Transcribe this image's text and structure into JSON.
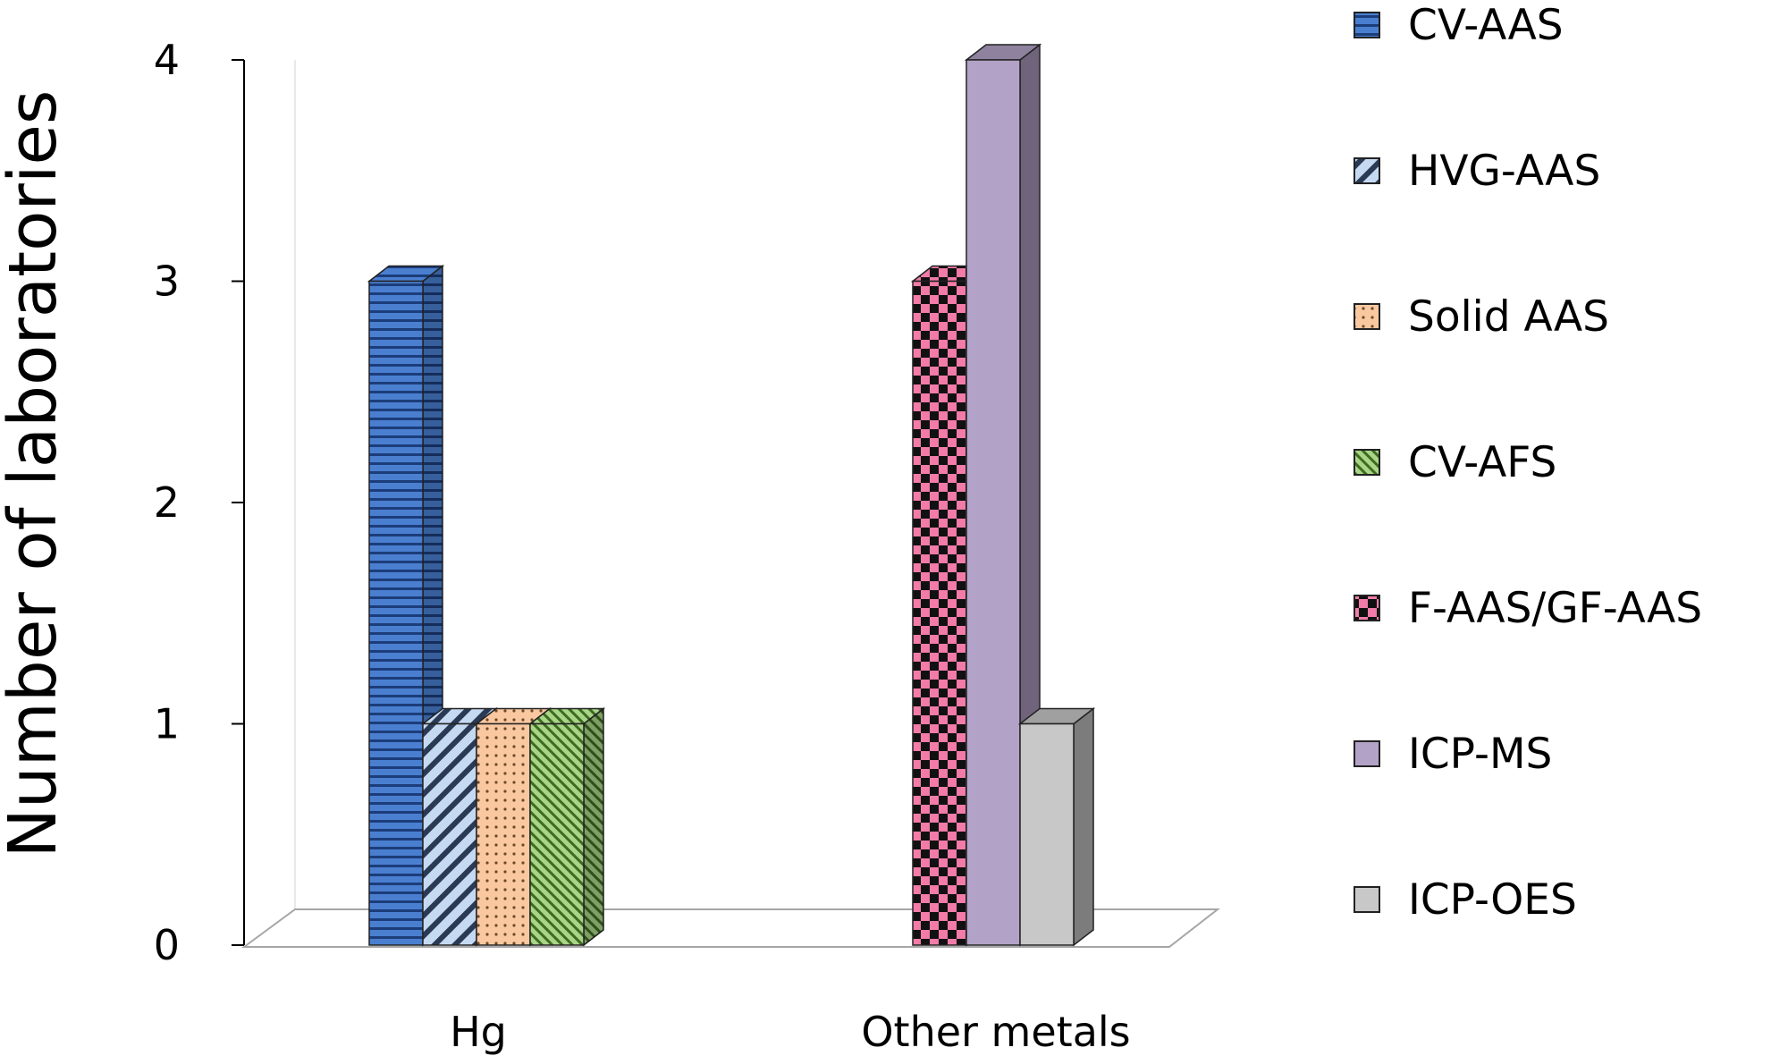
{
  "chart_data": {
    "type": "bar",
    "style": "3d-clustered-column",
    "categories": [
      "Hg",
      "Other metals"
    ],
    "ylabel": "Number of laboratories",
    "xlabel": "",
    "ylim": [
      0,
      4
    ],
    "yticks": [
      "0",
      "1",
      "2",
      "3",
      "4"
    ],
    "grid": false,
    "legend_position": "right",
    "series": [
      {
        "name": "CV-AAS",
        "values": [
          3,
          null
        ],
        "color": "#4a7fd0",
        "pattern": "horizontal-lines"
      },
      {
        "name": "HVG-AAS",
        "values": [
          1,
          null
        ],
        "color": "#c5d9f1",
        "pattern": "wide-diagonal-stripes"
      },
      {
        "name": "Solid AAS",
        "values": [
          1,
          null
        ],
        "color": "#fac8a0",
        "pattern": "dots"
      },
      {
        "name": "CV-AFS",
        "values": [
          1,
          null
        ],
        "color": "#a9d587",
        "pattern": "diagonal-stripes"
      },
      {
        "name": "F-AAS/GF-AAS",
        "values": [
          null,
          3
        ],
        "color": "#f27ba8",
        "pattern": "checkerboard"
      },
      {
        "name": "ICP-MS",
        "values": [
          null,
          4
        ],
        "color": "#b3a2c7",
        "pattern": "solid"
      },
      {
        "name": "ICP-OES",
        "values": [
          null,
          1
        ],
        "color": "#c8c8c8",
        "pattern": "solid"
      }
    ]
  }
}
